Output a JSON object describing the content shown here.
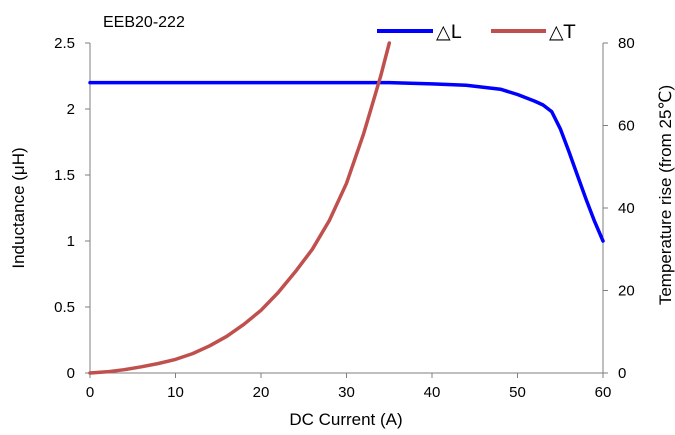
{
  "chart_data": {
    "type": "line",
    "title": "EEB20-222",
    "xlabel": "DC Current (A)",
    "ylabel": "Inductance (μH)",
    "y2label": "Temperature rise (from 25℃)",
    "xlim": [
      0,
      60
    ],
    "ylim": [
      0,
      2.5
    ],
    "y2lim": [
      0,
      80
    ],
    "x_ticks": [
      "0",
      "10",
      "20",
      "30",
      "40",
      "50",
      "60"
    ],
    "y_ticks": [
      "0",
      "0.5",
      "1",
      "1.5",
      "2",
      "2.5"
    ],
    "y2_ticks": [
      "0",
      "20",
      "40",
      "60",
      "80"
    ],
    "grid": false,
    "legend_position": "top-right",
    "series": [
      {
        "name": "△L",
        "axis": "left",
        "color": "#0000ff",
        "points": [
          [
            0,
            2.2
          ],
          [
            10,
            2.2
          ],
          [
            20,
            2.2
          ],
          [
            30,
            2.2
          ],
          [
            35,
            2.2
          ],
          [
            40,
            2.19
          ],
          [
            44,
            2.18
          ],
          [
            48,
            2.15
          ],
          [
            50,
            2.11
          ],
          [
            52,
            2.06
          ],
          [
            53,
            2.03
          ],
          [
            54,
            1.98
          ],
          [
            55,
            1.85
          ],
          [
            56,
            1.68
          ],
          [
            57,
            1.5
          ],
          [
            58,
            1.32
          ],
          [
            59,
            1.15
          ],
          [
            60,
            1.0
          ]
        ]
      },
      {
        "name": "△T",
        "axis": "right",
        "color": "#c0504d",
        "points": [
          [
            0,
            0
          ],
          [
            2,
            0.3
          ],
          [
            4,
            0.8
          ],
          [
            6,
            1.5
          ],
          [
            8,
            2.3
          ],
          [
            10,
            3.3
          ],
          [
            12,
            4.7
          ],
          [
            14,
            6.6
          ],
          [
            16,
            8.9
          ],
          [
            18,
            11.8
          ],
          [
            20,
            15.2
          ],
          [
            22,
            19.5
          ],
          [
            24,
            24.5
          ],
          [
            26,
            30
          ],
          [
            28,
            37
          ],
          [
            30,
            46
          ],
          [
            32,
            58
          ],
          [
            33,
            65
          ],
          [
            34,
            72
          ],
          [
            35,
            80
          ]
        ]
      }
    ]
  }
}
